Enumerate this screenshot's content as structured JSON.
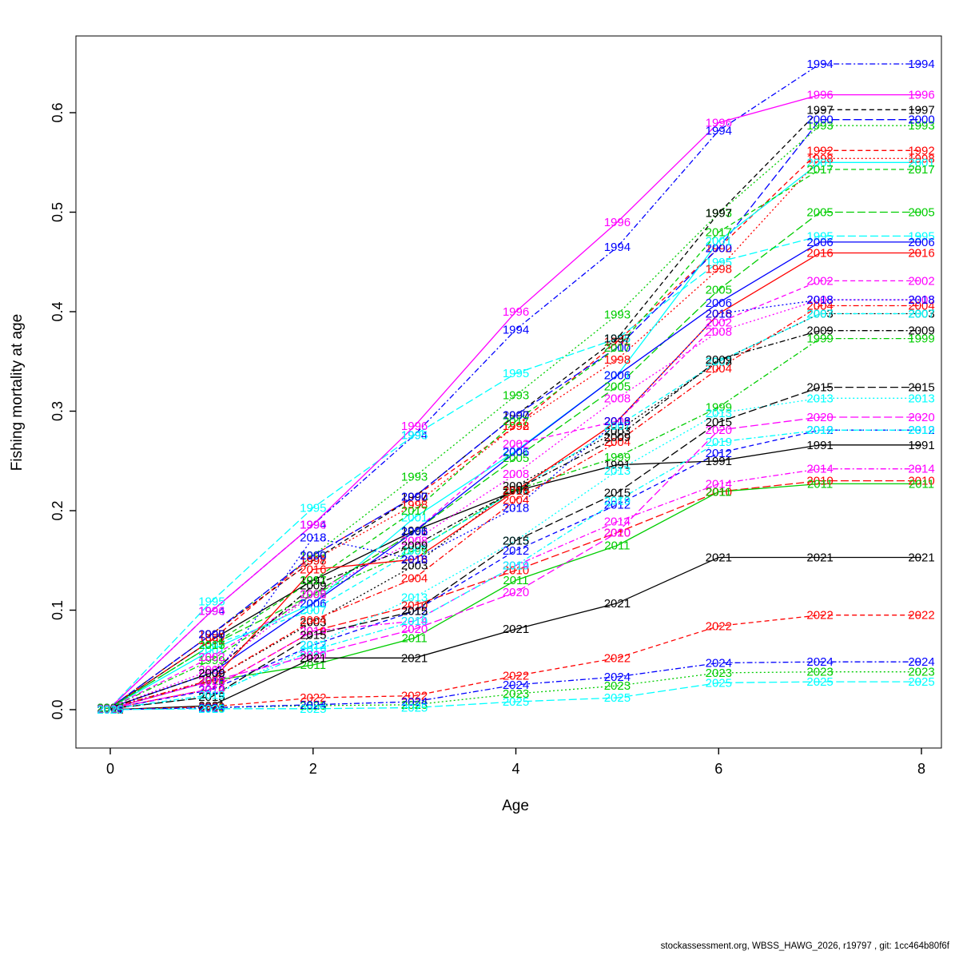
{
  "footer": {
    "text": "stockassessment.org, WBSS_HAWG_2026, r19797 , git: 1cc464b80f6f"
  },
  "chart_data": {
    "type": "line",
    "title": "",
    "xlabel": "Age",
    "ylabel": "Fishing mortality at age",
    "x": [
      0,
      1,
      2,
      3,
      4,
      5,
      6,
      7,
      8
    ],
    "xticks": [
      0,
      2,
      4,
      6,
      8
    ],
    "yticks": [
      "0.0",
      "0.1",
      "0.2",
      "0.3",
      "0.4",
      "0.5",
      "0.6"
    ],
    "xlim": [
      0,
      8
    ],
    "ylim": [
      0.0,
      0.65
    ],
    "grid": false,
    "legend_position": "labels-on-lines",
    "label_style": "year text at every data point",
    "palette": {
      "black": "#000000",
      "red": "#FF0000",
      "green": "#00CD00",
      "blue": "#0000FF",
      "cyan": "#00FFFF",
      "magenta": "#FF00FF"
    },
    "series": [
      {
        "name": "1991",
        "color": "#000000",
        "dash": "solid",
        "values": [
          0.002,
          0.07,
          0.13,
          0.18,
          0.22,
          0.246,
          0.25,
          0.266,
          0.266
        ]
      },
      {
        "name": "1992",
        "color": "#FF0000",
        "dash": "dashed",
        "values": [
          0.002,
          0.07,
          0.155,
          0.214,
          0.285,
          0.37,
          0.464,
          0.562,
          0.562
        ]
      },
      {
        "name": "1993",
        "color": "#00CD00",
        "dash": "dotted",
        "values": [
          0.002,
          0.076,
          0.155,
          0.234,
          0.316,
          0.397,
          0.499,
          0.587,
          0.587
        ]
      },
      {
        "name": "1994",
        "color": "#0000FF",
        "dash": "dotdash",
        "values": [
          0.002,
          0.099,
          0.186,
          0.276,
          0.382,
          0.465,
          0.582,
          0.649,
          0.649
        ]
      },
      {
        "name": "1995",
        "color": "#00FFFF",
        "dash": "longdash",
        "values": [
          0.002,
          0.109,
          0.203,
          0.276,
          0.338,
          0.373,
          0.45,
          0.476,
          0.476
        ]
      },
      {
        "name": "1996",
        "color": "#FF00FF",
        "dash": "solid",
        "values": [
          0.002,
          0.099,
          0.186,
          0.285,
          0.4,
          0.49,
          0.59,
          0.618,
          0.618
        ]
      },
      {
        "name": "1997",
        "color": "#000000",
        "dash": "dashed",
        "values": [
          0.002,
          0.076,
          0.15,
          0.214,
          0.296,
          0.373,
          0.499,
          0.603,
          0.603
        ]
      },
      {
        "name": "1998",
        "color": "#FF0000",
        "dash": "dotted",
        "values": [
          0.002,
          0.076,
          0.15,
          0.206,
          0.285,
          0.352,
          0.443,
          0.554,
          0.554
        ]
      },
      {
        "name": "1999",
        "color": "#00CD00",
        "dash": "dotdash",
        "values": [
          0.002,
          0.05,
          0.116,
          0.16,
          0.221,
          0.254,
          0.304,
          0.373,
          0.373
        ]
      },
      {
        "name": "2000",
        "color": "#0000FF",
        "dash": "longdash",
        "values": [
          0.002,
          0.076,
          0.155,
          0.214,
          0.296,
          0.364,
          0.464,
          0.593,
          0.593
        ]
      },
      {
        "name": "2001",
        "color": "#00FFFF",
        "dash": "solid",
        "values": [
          0.002,
          0.06,
          0.107,
          0.193,
          0.26,
          0.336,
          0.471,
          0.55,
          0.55
        ]
      },
      {
        "name": "2002",
        "color": "#FF00FF",
        "dash": "dashed",
        "values": [
          0.002,
          0.053,
          0.116,
          0.179,
          0.267,
          0.29,
          0.389,
          0.431,
          0.431
        ]
      },
      {
        "name": "2003",
        "color": "#000000",
        "dash": "dotted",
        "values": [
          0.002,
          0.03,
          0.088,
          0.145,
          0.225,
          0.28,
          0.35,
          0.398,
          0.398
        ]
      },
      {
        "name": "2004",
        "color": "#FF0000",
        "dash": "dotdash",
        "values": [
          0.002,
          0.03,
          0.09,
          0.132,
          0.211,
          0.269,
          0.343,
          0.406,
          0.406
        ]
      },
      {
        "name": "2005",
        "color": "#00CD00",
        "dash": "longdash",
        "values": [
          0.002,
          0.065,
          0.116,
          0.179,
          0.253,
          0.325,
          0.422,
          0.5,
          0.5
        ]
      },
      {
        "name": "2006",
        "color": "#0000FF",
        "dash": "solid",
        "values": [
          0.002,
          0.037,
          0.107,
          0.179,
          0.259,
          0.336,
          0.409,
          0.47,
          0.47
        ]
      },
      {
        "name": "2007",
        "color": "#00FFFF",
        "dash": "dashed",
        "values": [
          0.002,
          0.065,
          0.1,
          0.16,
          0.22,
          0.285,
          0.35,
          0.398,
          0.398
        ]
      },
      {
        "name": "2008",
        "color": "#FF00FF",
        "dash": "dotted",
        "values": [
          0.002,
          0.04,
          0.116,
          0.17,
          0.237,
          0.313,
          0.38,
          0.412,
          0.412
        ]
      },
      {
        "name": "2009",
        "color": "#000000",
        "dash": "dotdash",
        "values": [
          0.002,
          0.037,
          0.125,
          0.165,
          0.221,
          0.274,
          0.352,
          0.381,
          0.381
        ]
      },
      {
        "name": "2010",
        "color": "#FF0000",
        "dash": "longdash",
        "values": [
          0.001,
          0.021,
          0.079,
          0.105,
          0.14,
          0.178,
          0.219,
          0.23,
          0.23
        ]
      },
      {
        "name": "2011",
        "color": "#00CD00",
        "dash": "solid",
        "values": [
          0.001,
          0.029,
          0.045,
          0.072,
          0.13,
          0.165,
          0.219,
          0.227,
          0.227
        ]
      },
      {
        "name": "2012",
        "color": "#0000FF",
        "dash": "dashed",
        "values": [
          0.001,
          0.02,
          0.065,
          0.099,
          0.16,
          0.206,
          0.258,
          0.281,
          0.281
        ]
      },
      {
        "name": "2013",
        "color": "#00FFFF",
        "dash": "dotted",
        "values": [
          0.001,
          0.013,
          0.065,
          0.113,
          0.17,
          0.24,
          0.298,
          0.313,
          0.313
        ]
      },
      {
        "name": "2014",
        "color": "#FF00FF",
        "dash": "dotdash",
        "values": [
          0.001,
          0.021,
          0.079,
          0.089,
          0.145,
          0.189,
          0.227,
          0.242,
          0.242
        ]
      },
      {
        "name": "2015",
        "color": "#000000",
        "dash": "longdash",
        "values": [
          0.001,
          0.013,
          0.075,
          0.099,
          0.17,
          0.218,
          0.289,
          0.324,
          0.324
        ]
      },
      {
        "name": "2016",
        "color": "#FF0000",
        "dash": "solid",
        "values": [
          0.001,
          0.029,
          0.141,
          0.151,
          0.22,
          0.29,
          0.398,
          0.459,
          0.459
        ]
      },
      {
        "name": "2017",
        "color": "#00CD00",
        "dash": "dashed",
        "values": [
          0.002,
          0.065,
          0.13,
          0.2,
          0.29,
          0.364,
          0.48,
          0.543,
          0.543
        ]
      },
      {
        "name": "2018",
        "color": "#0000FF",
        "dash": "dotted",
        "values": [
          0.001,
          0.029,
          0.173,
          0.151,
          0.203,
          0.29,
          0.398,
          0.412,
          0.412
        ]
      },
      {
        "name": "2019",
        "color": "#00FFFF",
        "dash": "dotdash",
        "values": [
          0.001,
          0.015,
          0.06,
          0.089,
          0.145,
          0.21,
          0.269,
          0.281,
          0.281
        ]
      },
      {
        "name": "2020",
        "color": "#FF00FF",
        "dash": "longdash",
        "values": [
          0.001,
          0.029,
          0.055,
          0.081,
          0.118,
          0.178,
          0.281,
          0.294,
          0.294
        ]
      },
      {
        "name": "2021",
        "color": "#000000",
        "dash": "solid",
        "values": [
          0.0,
          0.004,
          0.052,
          0.052,
          0.081,
          0.107,
          0.153,
          0.153,
          0.153
        ]
      },
      {
        "name": "2022",
        "color": "#FF0000",
        "dash": "dashed",
        "values": [
          0.0,
          0.003,
          0.012,
          0.014,
          0.034,
          0.052,
          0.084,
          0.095,
          0.095
        ]
      },
      {
        "name": "2023",
        "color": "#00CD00",
        "dash": "dotted",
        "values": [
          0.0,
          0.002,
          0.004,
          0.005,
          0.016,
          0.024,
          0.037,
          0.038,
          0.038
        ]
      },
      {
        "name": "2024",
        "color": "#0000FF",
        "dash": "dotdash",
        "values": [
          0.0,
          0.002,
          0.005,
          0.008,
          0.025,
          0.033,
          0.047,
          0.048,
          0.048
        ]
      },
      {
        "name": "2025",
        "color": "#00FFFF",
        "dash": "longdash",
        "values": [
          0.0,
          0.001,
          0.001,
          0.002,
          0.008,
          0.012,
          0.027,
          0.028,
          0.028
        ]
      }
    ]
  }
}
